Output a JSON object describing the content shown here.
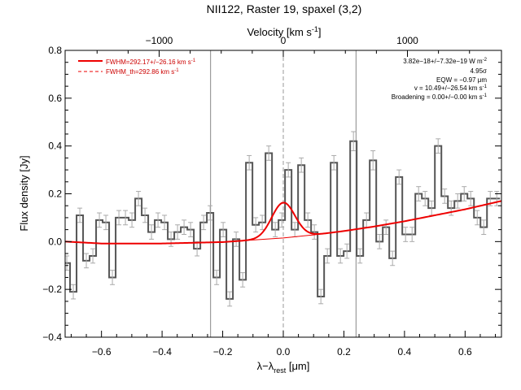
{
  "chart_data": {
    "type": "line",
    "title": "NII122, Raster 19, spaxel (3,2)",
    "xlabel": "λ−λ",
    "xlabel_sub": "rest",
    "xlabel_unit": " [μm]",
    "ylabel": "Flux density [Jy]",
    "top_axis_label": "Velocity [km s",
    "top_axis_label_sup": "-1",
    "top_axis_label_end": "]",
    "xlim": [
      -0.72,
      0.72
    ],
    "ylim": [
      -0.4,
      0.8
    ],
    "top_axis_ticks": [
      {
        "label": "−1000",
        "x": -0.4097
      },
      {
        "label": "0",
        "x": 0.0
      },
      {
        "label": "1000",
        "x": 0.4097
      }
    ],
    "x_tick_labels": [
      "−0.6",
      "−0.4",
      "−0.2",
      "0.0",
      "0.2",
      "0.4",
      "0.6"
    ],
    "x_ticks": [
      -0.6,
      -0.4,
      -0.2,
      0.0,
      0.2,
      0.4,
      0.6
    ],
    "y_tick_labels": [
      "−0.4",
      "−0.2",
      "0.0",
      "0.2",
      "0.4",
      "0.6",
      "0.8"
    ],
    "y_ticks": [
      -0.4,
      -0.2,
      0.0,
      0.2,
      0.4,
      0.6,
      0.8
    ],
    "vertical_lines": {
      "solid": [
        -0.24,
        0.24
      ],
      "dashed": [
        0.0
      ]
    },
    "legend": {
      "placement": "top-left",
      "entries": [
        {
          "label": "FWHM=292.17+/−26.16 km s",
          "sup": "-1",
          "style": "solid"
        },
        {
          "label": "FWHM_th=292.86 km s",
          "sup": "-1",
          "style": "dashed"
        }
      ]
    },
    "annotations": {
      "placement": "top-right",
      "lines": [
        {
          "text": "3.82e−18+/−7.32e−19 W m",
          "sup": "-2"
        },
        {
          "text": "4.95σ",
          "sup": ""
        },
        {
          "text": "EQW = −0.97 μm",
          "sup": ""
        },
        {
          "text": "v = 10.49+/−26.54 km s",
          "sup": "-1"
        },
        {
          "text": "Broadening = 0.00+/−0.00 km s",
          "sup": "-1"
        }
      ]
    },
    "spectrum": {
      "name": "data",
      "color": "#555555",
      "error_color": "#aaaaaa",
      "bin_width": 0.0215,
      "x": [
        -0.7145,
        -0.693,
        -0.6715,
        -0.65,
        -0.6285,
        -0.607,
        -0.5855,
        -0.564,
        -0.5425,
        -0.521,
        -0.4995,
        -0.478,
        -0.4565,
        -0.435,
        -0.4135,
        -0.392,
        -0.3705,
        -0.349,
        -0.3275,
        -0.306,
        -0.2845,
        -0.263,
        -0.2415,
        -0.22,
        -0.1985,
        -0.177,
        -0.1555,
        -0.134,
        -0.1125,
        -0.091,
        -0.0695,
        -0.048,
        -0.0265,
        -0.005,
        0.0165,
        0.038,
        0.0595,
        0.081,
        0.1025,
        0.124,
        0.1455,
        0.167,
        0.1885,
        0.21,
        0.2315,
        0.253,
        0.2745,
        0.296,
        0.3175,
        0.339,
        0.3605,
        0.382,
        0.4035,
        0.425,
        0.4465,
        0.468,
        0.4895,
        0.511,
        0.5325,
        0.554,
        0.5755,
        0.597,
        0.6185,
        0.64,
        0.6615,
        0.683,
        0.7045
      ],
      "y": [
        -0.09,
        -0.21,
        0.11,
        -0.08,
        -0.06,
        0.09,
        0.08,
        -0.15,
        0.1,
        0.1,
        0.09,
        0.18,
        0.11,
        0.04,
        0.09,
        0.08,
        0.01,
        0.04,
        0.06,
        0.05,
        -0.03,
        0.08,
        0.12,
        -0.15,
        0.05,
        -0.24,
        0.01,
        -0.16,
        0.33,
        0.07,
        0.08,
        0.37,
        0.05,
        0.09,
        0.3,
        0.05,
        0.32,
        0.09,
        0.04,
        -0.23,
        -0.06,
        0.33,
        -0.06,
        -0.04,
        0.42,
        -0.06,
        0.09,
        0.34,
        0.0,
        0.06,
        -0.07,
        0.27,
        0.03,
        0.03,
        0.2,
        0.18,
        0.14,
        0.4,
        0.19,
        0.14,
        0.17,
        0.2,
        0.18,
        0.1,
        0.06,
        0.18,
        0.18
      ],
      "err": [
        0.03,
        0.03,
        0.03,
        0.03,
        0.03,
        0.03,
        0.03,
        0.03,
        0.03,
        0.03,
        0.03,
        0.03,
        0.03,
        0.03,
        0.03,
        0.03,
        0.03,
        0.03,
        0.03,
        0.03,
        0.03,
        0.03,
        0.03,
        0.03,
        0.03,
        0.03,
        0.03,
        0.03,
        0.03,
        0.03,
        0.03,
        0.03,
        0.03,
        0.03,
        0.03,
        0.03,
        0.03,
        0.03,
        0.03,
        0.03,
        0.03,
        0.03,
        0.03,
        0.03,
        0.04,
        0.03,
        0.03,
        0.04,
        0.03,
        0.03,
        0.03,
        0.03,
        0.03,
        0.03,
        0.03,
        0.03,
        0.03,
        0.03,
        0.03,
        0.03,
        0.03,
        0.03,
        0.03,
        0.03,
        0.03,
        0.03,
        0.03
      ]
    },
    "fit": {
      "name": "fit",
      "color": "#ee0000",
      "continuum": {
        "x": [
          -0.72,
          -0.6,
          -0.4,
          -0.2,
          0.0,
          0.1,
          0.2,
          0.3,
          0.4,
          0.5,
          0.6,
          0.72
        ],
        "y": [
          0.0,
          -0.008,
          -0.008,
          -0.002,
          0.015,
          0.028,
          0.044,
          0.063,
          0.085,
          0.11,
          0.135,
          0.17
        ]
      },
      "gaussian": {
        "center": 0.0,
        "amplitude": 0.148,
        "sigma": 0.038
      }
    }
  }
}
